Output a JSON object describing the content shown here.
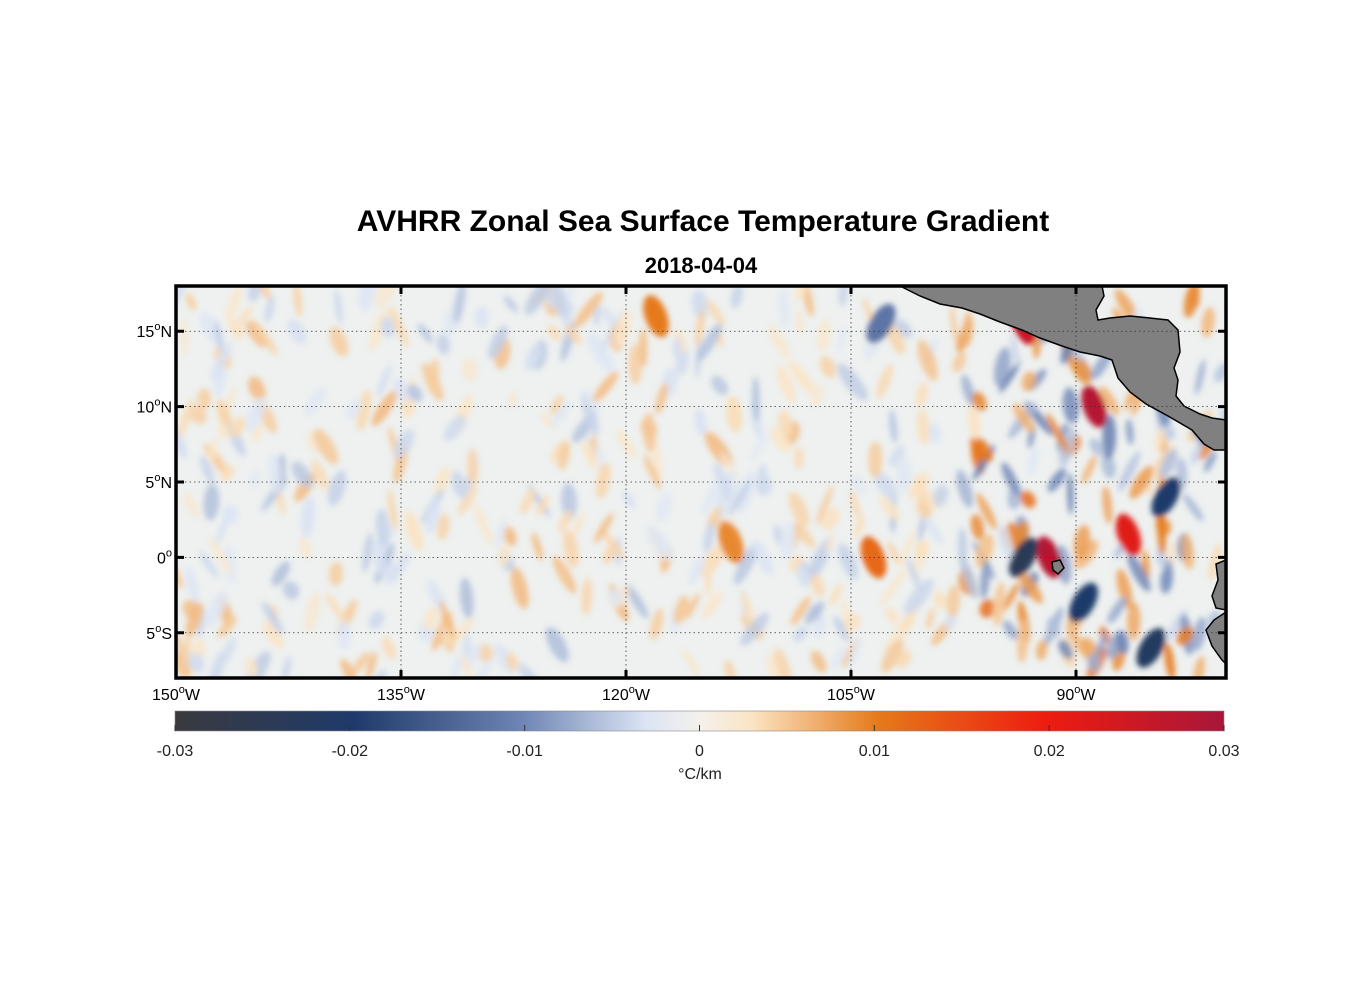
{
  "title": "AVHRR Zonal Sea Surface Temperature Gradient",
  "subtitle": "2018-04-04",
  "chart_data": {
    "type": "heatmap",
    "title": "AVHRR Zonal Sea Surface Temperature Gradient",
    "subtitle": "2018-04-04",
    "x_ticks": [
      {
        "value": -150,
        "deg": "150",
        "hem": "W"
      },
      {
        "value": -135,
        "deg": "135",
        "hem": "W"
      },
      {
        "value": -120,
        "deg": "120",
        "hem": "W"
      },
      {
        "value": -105,
        "deg": "105",
        "hem": "W"
      },
      {
        "value": -90,
        "deg": "90",
        "hem": "W"
      }
    ],
    "y_ticks": [
      {
        "value": 15,
        "deg": "15",
        "hem": "N"
      },
      {
        "value": 10,
        "deg": "10",
        "hem": "N"
      },
      {
        "value": 5,
        "deg": "5",
        "hem": "N"
      },
      {
        "value": 0,
        "deg": "0",
        "hem": ""
      },
      {
        "value": -5,
        "deg": "5",
        "hem": "S"
      }
    ],
    "xlim": [
      -150,
      -80
    ],
    "ylim": [
      -8,
      18
    ],
    "grid": true,
    "land_color": "#808080",
    "colorbar": {
      "ticks": [
        "-0.03",
        "-0.02",
        "-0.01",
        "0",
        "0.01",
        "0.02",
        "0.03"
      ],
      "tick_values": [
        -0.03,
        -0.02,
        -0.01,
        0,
        0.01,
        0.02,
        0.03
      ],
      "label": "°C/km",
      "range": [
        -0.03,
        0.03
      ],
      "colors": [
        "#3a3a3e",
        "#1f3a6a",
        "#6d84b4",
        "#e8ecf4",
        "#fbe4c4",
        "#e57a1a",
        "#ee1c10",
        "#a8163a"
      ]
    },
    "features": [
      {
        "lon": -93.5,
        "lat": 15.5,
        "value": 0.025
      },
      {
        "lon": -88.8,
        "lat": 10,
        "value": 0.028
      },
      {
        "lon": -86.5,
        "lat": 1.5,
        "value": 0.022
      },
      {
        "lon": -91.8,
        "lat": 0,
        "value": 0.028
      },
      {
        "lon": -93.5,
        "lat": 0,
        "value": -0.024
      },
      {
        "lon": -89.5,
        "lat": -3,
        "value": -0.02
      },
      {
        "lon": -84,
        "lat": 4,
        "value": -0.02
      },
      {
        "lon": -85,
        "lat": -6,
        "value": -0.022
      },
      {
        "lon": -103.5,
        "lat": 0,
        "value": 0.012
      },
      {
        "lon": -118,
        "lat": 16,
        "value": 0.01
      },
      {
        "lon": -113,
        "lat": 1,
        "value": 0.009
      },
      {
        "lon": -103,
        "lat": 15.5,
        "value": -0.012
      }
    ]
  }
}
